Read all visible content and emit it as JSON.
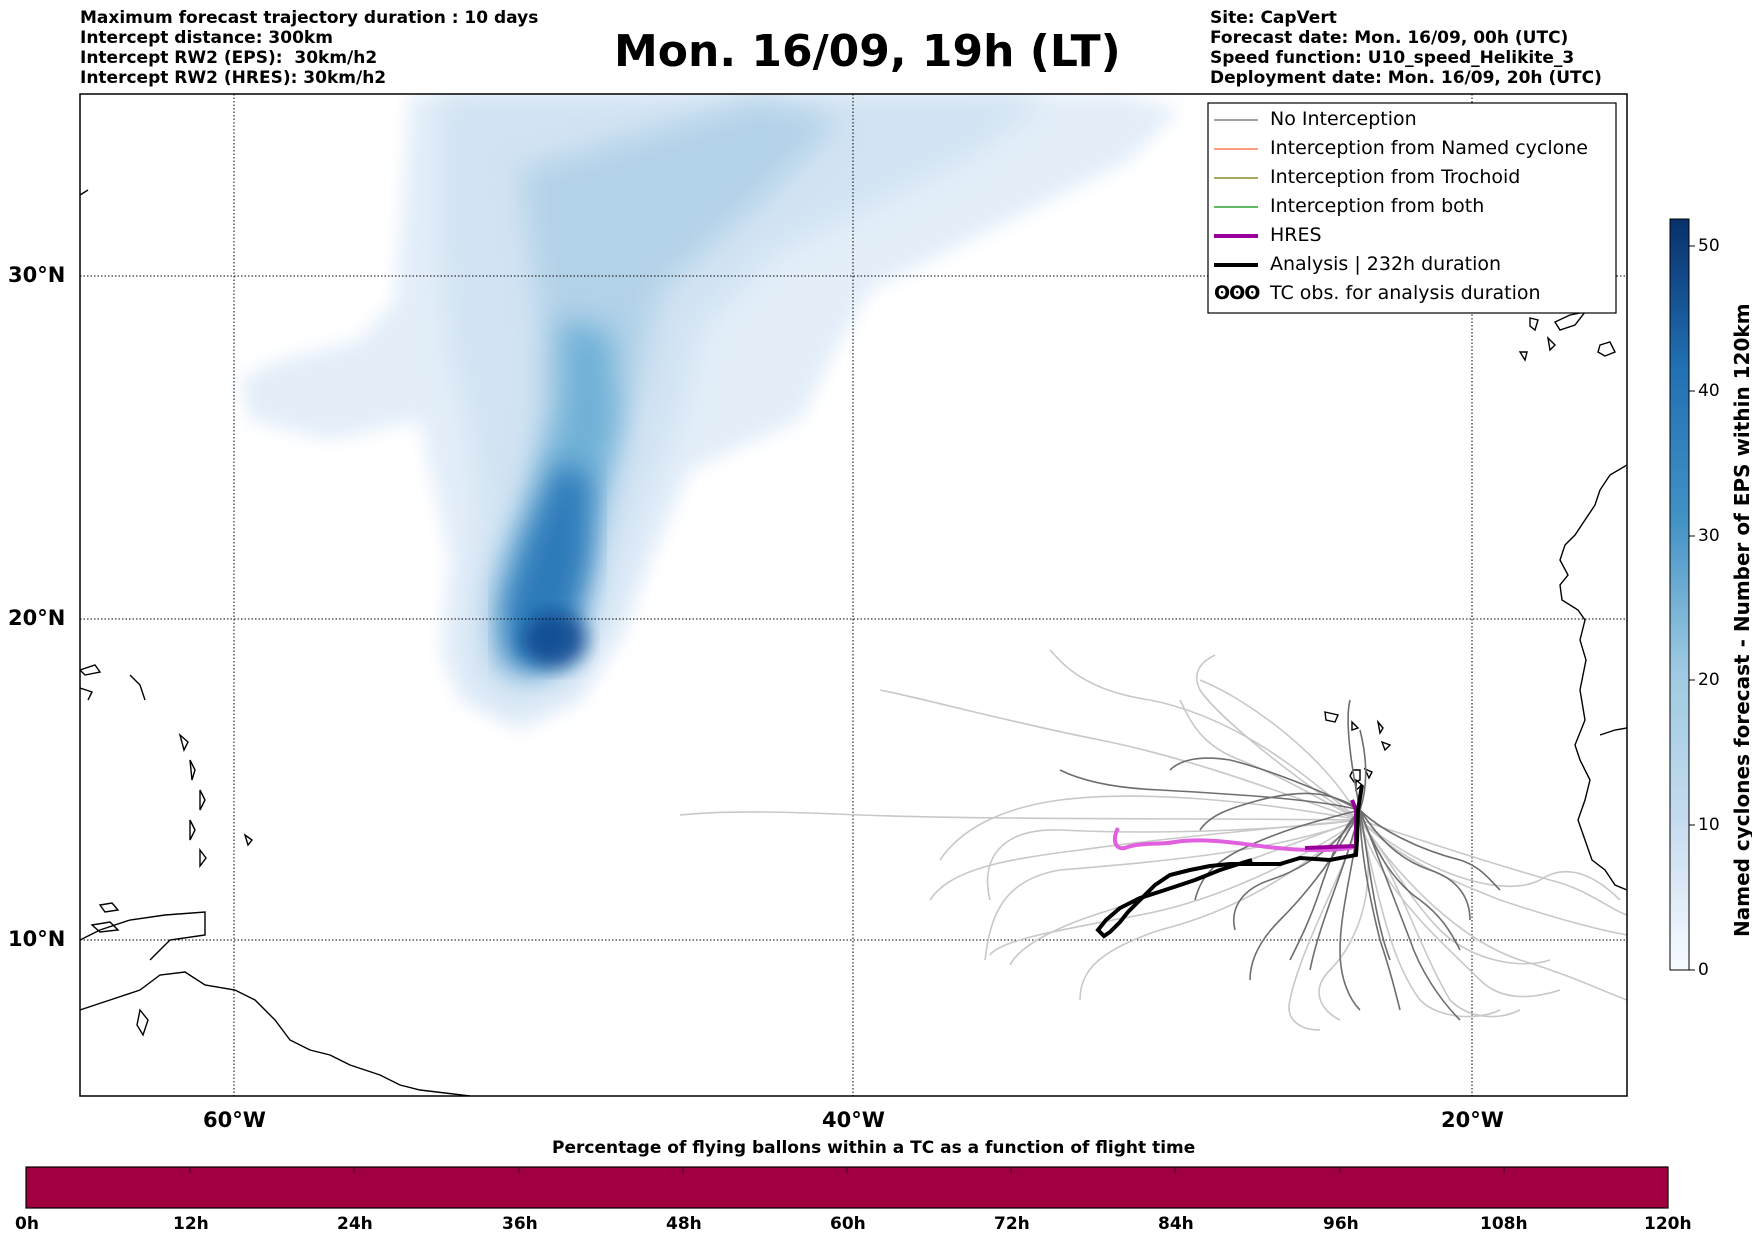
{
  "header": {
    "left_lines": [
      "Maximum forecast trajectory duration : 10 days",
      "Intercept distance: 300km",
      "Intercept RW2 (EPS):  30km/h2",
      "Intercept RW2 (HRES): 30km/h2"
    ],
    "title": "Mon. 16/09, 19h (LT)",
    "right_lines": [
      "Site: CapVert",
      "Forecast date: Mon. 16/09, 00h (UTC)",
      "Speed function: U10_speed_Helikite_3",
      "Deployment date: Mon. 16/09, 20h (UTC)"
    ]
  },
  "map": {
    "lat_labels": [
      "30°N",
      "20°N",
      "10°N"
    ],
    "lon_labels": [
      "60°W",
      "40°W",
      "20°W"
    ]
  },
  "legend": {
    "items": [
      {
        "label": "No Interception",
        "color": "#808080"
      },
      {
        "label": "Interception from Named cyclone",
        "color": "#ff7f50"
      },
      {
        "label": "Interception from Trochoid",
        "color": "#8b8b2a"
      },
      {
        "label": "Interception from both",
        "color": "#2ca02c"
      },
      {
        "label": "HRES",
        "color": "#990099"
      },
      {
        "label": "Analysis | 232h duration",
        "color": "#000000"
      },
      {
        "label": "TC obs. for analysis duration",
        "color": "#000000",
        "symbol": "ʘʘʘ"
      }
    ]
  },
  "colorbar": {
    "label": "Named cyclones forecast - Number of EPS within 120km",
    "ticks": [
      "0",
      "10",
      "20",
      "30",
      "40",
      "50"
    ]
  },
  "bottom_bar": {
    "title": "Percentage of flying ballons within a TC as a function of flight time",
    "ticks": [
      "0h",
      "12h",
      "24h",
      "36h",
      "48h",
      "60h",
      "72h",
      "84h",
      "96h",
      "108h",
      "120h"
    ],
    "fill_color": "#a00040"
  }
}
